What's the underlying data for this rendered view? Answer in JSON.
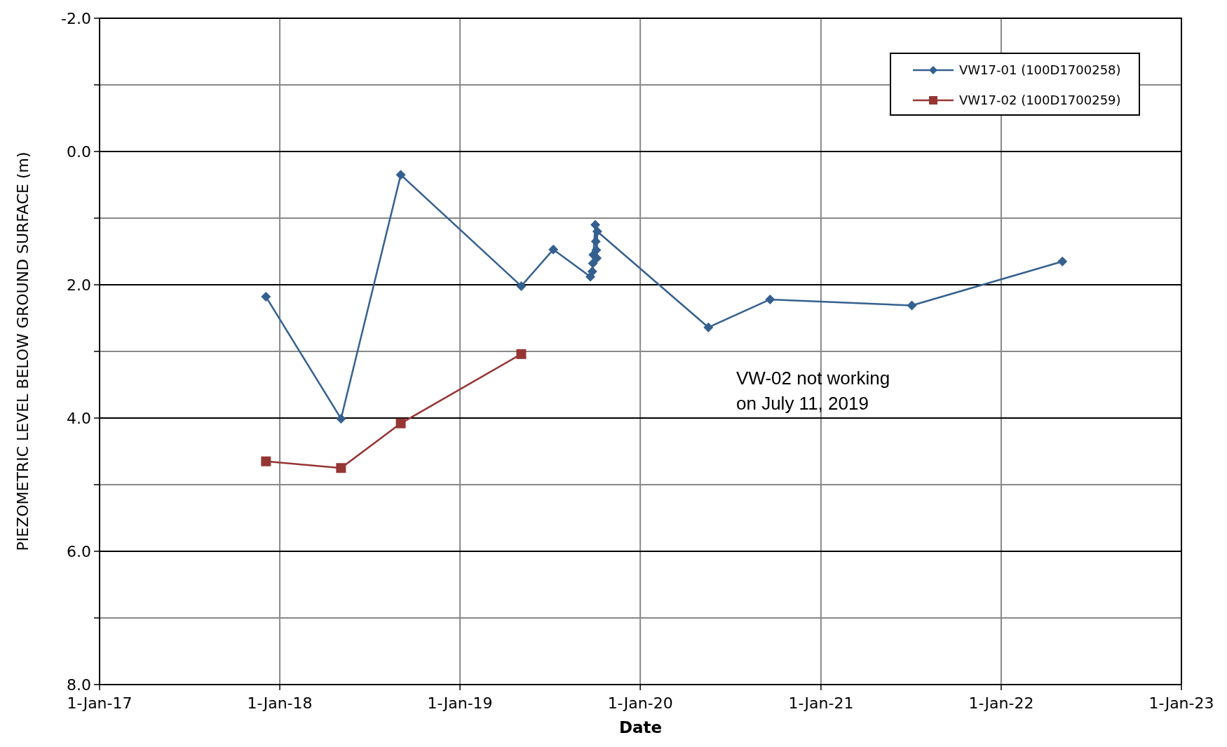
{
  "chart_data": {
    "type": "line",
    "xlabel": "Date",
    "ylabel": "PIEZOMETRIC LEVEL BELOW GROUND SURFACE (m)",
    "xlim": [
      "2017-01-01",
      "2023-01-01"
    ],
    "xticks": [
      {
        "value": "2017-01-01",
        "label": "1-Jan-17"
      },
      {
        "value": "2018-01-01",
        "label": "1-Jan-18"
      },
      {
        "value": "2019-01-01",
        "label": "1-Jan-19"
      },
      {
        "value": "2020-01-01",
        "label": "1-Jan-20"
      },
      {
        "value": "2021-01-01",
        "label": "1-Jan-21"
      },
      {
        "value": "2022-01-01",
        "label": "1-Jan-22"
      },
      {
        "value": "2023-01-01",
        "label": "1-Jan-23"
      }
    ],
    "ylim": [
      8,
      -2
    ],
    "yticks": [
      {
        "value": -2,
        "label": "-2.0"
      },
      {
        "value": -1,
        "label": null
      },
      {
        "value": 0,
        "label": "0.0"
      },
      {
        "value": 1,
        "label": null
      },
      {
        "value": 2,
        "label": "2.0"
      },
      {
        "value": 3,
        "label": null
      },
      {
        "value": 4,
        "label": "4.0"
      },
      {
        "value": 5,
        "label": null
      },
      {
        "value": 6,
        "label": "6.0"
      },
      {
        "value": 7,
        "label": null
      },
      {
        "value": 8,
        "label": "8.0"
      }
    ],
    "grid": true,
    "legend": "top right",
    "line_style": "solid",
    "series": [
      {
        "name": "VW17-01 (100D1700258)",
        "color": "#34608f",
        "marker": "diamond",
        "x": [
          "2017-12-04",
          "2018-05-05",
          "2018-09-03",
          "2019-05-05",
          "2019-07-09",
          "2019-09-22",
          "2019-09-26",
          "2019-09-27",
          "2019-09-28",
          "2019-10-02",
          "2019-10-03",
          "2019-10-04",
          "2019-10-05",
          "2019-10-06",
          "2020-05-18",
          "2020-09-20",
          "2021-07-04",
          "2022-05-05"
        ],
        "values": [
          2.18,
          4.01,
          0.35,
          2.02,
          1.47,
          1.88,
          1.8,
          1.68,
          1.55,
          1.1,
          1.35,
          1.48,
          1.6,
          1.2,
          2.64,
          2.22,
          2.31,
          1.65
        ]
      },
      {
        "name": "VW17-02 (100D1700259)",
        "color": "#963634",
        "marker": "square",
        "x": [
          "2017-12-04",
          "2018-05-05",
          "2018-09-03",
          "2019-05-05"
        ],
        "values": [
          4.65,
          4.75,
          4.08,
          3.04
        ]
      }
    ],
    "annotations": [
      "VW-02 not working\non July 11, 2019"
    ]
  }
}
